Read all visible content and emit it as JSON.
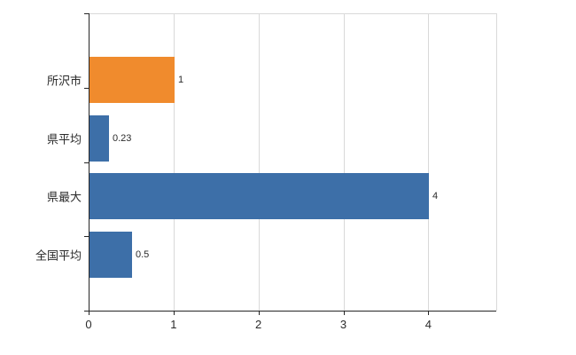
{
  "chart_data": {
    "type": "bar",
    "orientation": "horizontal",
    "title": "",
    "xlabel": "",
    "ylabel": "",
    "categories": [
      "所沢市",
      "県平均",
      "県最大",
      "全国平均"
    ],
    "values": [
      1,
      0.23,
      4,
      0.5
    ],
    "value_labels": [
      "1",
      "0.23",
      "4",
      "0.5"
    ],
    "bar_colors": [
      "#f08b2d",
      "#3d6fa8",
      "#3d6fa8",
      "#3d6fa8"
    ],
    "xticks": [
      0,
      1,
      2,
      3,
      4
    ],
    "xtick_labels": [
      "0",
      "1",
      "2",
      "3",
      "4"
    ],
    "xlim": [
      0,
      4.8
    ],
    "grid": "vertical",
    "legend": "none",
    "colors": {
      "grid": "#d9d9d9",
      "axis": "#262626",
      "text": "#2b2b2b",
      "background": "#ffffff",
      "accent_orange": "#f08b2d",
      "accent_blue": "#3d6fa8"
    }
  }
}
